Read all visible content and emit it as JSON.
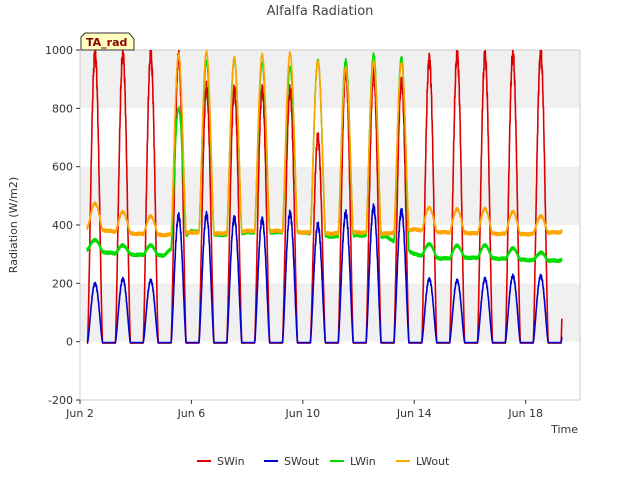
{
  "chart_data": {
    "type": "line",
    "title": "Alfalfa Radiation",
    "xlabel": "Time",
    "ylabel": "Radiation (W/m2)",
    "badge": "TA_rad",
    "xlim": [
      2.0,
      19.95
    ],
    "ylim": [
      -200,
      1000
    ],
    "y_ticks": [
      -200,
      0,
      200,
      400,
      600,
      800,
      1000
    ],
    "x_ticks": [
      {
        "value": 2,
        "label": "Jun 2"
      },
      {
        "value": 6,
        "label": "Jun 6"
      },
      {
        "value": 10,
        "label": "Jun 10"
      },
      {
        "value": 14,
        "label": "Jun 14"
      },
      {
        "value": 18,
        "label": "Jun 18"
      }
    ],
    "grid": "horizontal bands",
    "legend_position": "bottom",
    "data_range": [
      2.25,
      19.3
    ],
    "series": [
      {
        "name": "SWin",
        "color": "#dd0000",
        "base": -5,
        "peaks": [
          990,
          985,
          985,
          975,
          870,
          865,
          865,
          860,
          700,
          930,
          920,
          895,
          970,
          985,
          980,
          985,
          990
        ]
      },
      {
        "name": "SWout",
        "color": "#0000cc",
        "base": -3,
        "peaks": [
          200,
          215,
          210,
          430,
          435,
          425,
          420,
          440,
          400,
          440,
          460,
          450,
          215,
          210,
          215,
          225,
          225
        ]
      },
      {
        "name": "LWin",
        "color": "#00dd00",
        "night": [
          320,
          305,
          298,
          295,
          380,
          365,
          375,
          375,
          375,
          360,
          365,
          360,
          300,
          285,
          288,
          285,
          280,
          278
        ],
        "peaks": [
          350,
          330,
          330,
          800,
          960,
          970,
          955,
          940,
          965,
          965,
          985,
          975,
          335,
          330,
          330,
          320,
          305
        ]
      },
      {
        "name": "LWout",
        "color": "#ffa500",
        "night": [
          395,
          380,
          370,
          365,
          375,
          370,
          380,
          380,
          375,
          370,
          375,
          370,
          385,
          375,
          372,
          370,
          368,
          375
        ],
        "peaks": [
          475,
          445,
          430,
          985,
          995,
          975,
          985,
          990,
          960,
          940,
          960,
          955,
          460,
          455,
          455,
          445,
          430
        ]
      }
    ]
  }
}
